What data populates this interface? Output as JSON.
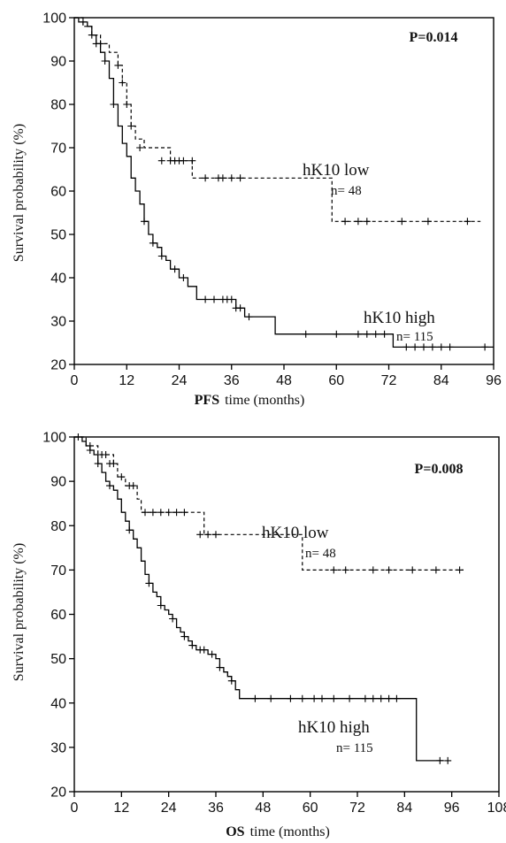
{
  "chart_data": [
    {
      "type": "line",
      "subtype": "kaplan-meier",
      "p_value": "P=0.014",
      "xlabel_bold": "PFS",
      "xlabel_rest": "time (months)",
      "ylabel": "Survival probability (%)",
      "xlim": [
        0,
        96
      ],
      "ylim": [
        20,
        100
      ],
      "xticks": [
        0,
        12,
        24,
        36,
        48,
        60,
        72,
        84,
        96
      ],
      "yticks": [
        20,
        30,
        40,
        50,
        60,
        70,
        80,
        90,
        100
      ],
      "grid": false,
      "series": [
        {
          "name": "hK10 low",
          "n_label": "n= 48",
          "style": "dashed",
          "x": [
            0,
            2,
            4,
            6,
            8,
            10,
            11,
            12,
            13,
            14,
            16,
            22,
            27,
            59,
            93
          ],
          "y": [
            100,
            98,
            96,
            94,
            92,
            89,
            85,
            80,
            75,
            72,
            70,
            67,
            63,
            53,
            53
          ],
          "censor_x": [
            4,
            6,
            10,
            11,
            12,
            13,
            15,
            20,
            22,
            23,
            24,
            25,
            27,
            30,
            33,
            34,
            36,
            38,
            62,
            65,
            67,
            75,
            81,
            90
          ],
          "censor_y": [
            96,
            94,
            89,
            85,
            80,
            75,
            70,
            67,
            67,
            67,
            67,
            67,
            67,
            63,
            63,
            63,
            63,
            63,
            53,
            53,
            53,
            53,
            53,
            53
          ]
        },
        {
          "name": "hK10 high",
          "n_label": "n= 115",
          "style": "solid",
          "x": [
            0,
            1,
            3,
            4,
            5,
            6,
            7,
            8,
            9,
            10,
            11,
            12,
            13,
            14,
            15,
            16,
            17,
            18,
            19,
            20,
            21,
            22,
            24,
            26,
            28,
            37,
            39,
            46,
            73,
            96
          ],
          "y": [
            100,
            99,
            98,
            96,
            94,
            92,
            90,
            86,
            80,
            75,
            71,
            68,
            63,
            60,
            57,
            53,
            50,
            48,
            47,
            45,
            44,
            42,
            40,
            38,
            35,
            33,
            31,
            27,
            24,
            24
          ],
          "censor_x": [
            2,
            5,
            7,
            9,
            16,
            18,
            20,
            23,
            25,
            30,
            32,
            34,
            35,
            36,
            37,
            38,
            40,
            53,
            60,
            65,
            67,
            69,
            71,
            76,
            78,
            80,
            82,
            84,
            86,
            94
          ],
          "censor_y": [
            99,
            94,
            90,
            80,
            53,
            48,
            45,
            42,
            40,
            35,
            35,
            35,
            35,
            35,
            33,
            33,
            31,
            27,
            27,
            27,
            27,
            27,
            27,
            24,
            24,
            24,
            24,
            24,
            24,
            24
          ]
        }
      ]
    },
    {
      "type": "line",
      "subtype": "kaplan-meier",
      "p_value": "P=0.008",
      "xlabel_bold": "OS",
      "xlabel_rest": "time (months)",
      "ylabel": "Survival probability (%)",
      "xlim": [
        0,
        108
      ],
      "ylim": [
        20,
        100
      ],
      "xticks": [
        0,
        12,
        24,
        36,
        48,
        60,
        72,
        84,
        96,
        108
      ],
      "yticks": [
        20,
        30,
        40,
        50,
        60,
        70,
        80,
        90,
        100
      ],
      "grid": false,
      "series": [
        {
          "name": "hK10 low",
          "n_label": "n= 48",
          "style": "dashed",
          "x": [
            0,
            3,
            6,
            10,
            11,
            13,
            16,
            17,
            26,
            33,
            58,
            99
          ],
          "y": [
            100,
            98,
            96,
            94,
            91,
            89,
            86,
            83,
            83,
            78,
            70,
            70
          ],
          "censor_x": [
            4,
            7,
            8,
            9,
            10,
            12,
            14,
            15,
            18,
            20,
            22,
            24,
            26,
            28,
            32,
            34,
            36,
            66,
            69,
            76,
            80,
            86,
            92,
            98
          ],
          "censor_y": [
            98,
            96,
            96,
            94,
            94,
            91,
            89,
            89,
            83,
            83,
            83,
            83,
            83,
            83,
            78,
            78,
            78,
            70,
            70,
            70,
            70,
            70,
            70,
            70
          ]
        },
        {
          "name": "hK10 high",
          "n_label": "n= 115",
          "style": "solid",
          "x": [
            0,
            2,
            3,
            4,
            5,
            6,
            7,
            8,
            9,
            10,
            11,
            12,
            13,
            14,
            15,
            16,
            17,
            18,
            19,
            20,
            21,
            22,
            23,
            24,
            25,
            26,
            27,
            28,
            29,
            30,
            31,
            32,
            34,
            36,
            37,
            38,
            39,
            40,
            41,
            42,
            87,
            94
          ],
          "y": [
            100,
            99,
            98,
            97,
            96,
            94,
            92,
            90,
            89,
            88,
            86,
            83,
            81,
            79,
            77,
            75,
            72,
            69,
            67,
            65,
            64,
            62,
            61,
            60,
            59,
            57,
            56,
            55,
            54,
            53,
            52,
            52,
            51,
            50,
            48,
            47,
            46,
            45,
            43,
            41,
            27,
            27
          ],
          "censor_x": [
            1,
            4,
            6,
            9,
            14,
            19,
            22,
            25,
            28,
            30,
            32,
            33,
            35,
            37,
            40,
            46,
            50,
            55,
            58,
            61,
            63,
            66,
            70,
            74,
            76,
            78,
            80,
            82,
            93,
            95
          ],
          "censor_y": [
            100,
            97,
            94,
            89,
            79,
            67,
            62,
            59,
            55,
            53,
            52,
            52,
            51,
            48,
            45,
            41,
            41,
            41,
            41,
            41,
            41,
            41,
            41,
            41,
            41,
            41,
            41,
            41,
            27,
            27
          ]
        }
      ]
    }
  ]
}
